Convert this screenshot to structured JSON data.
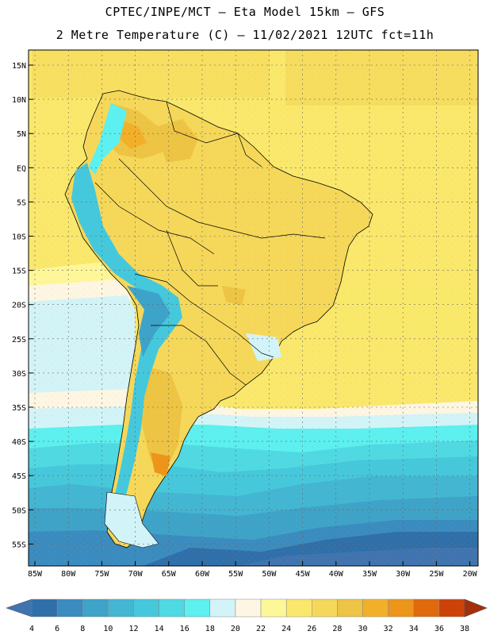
{
  "header": {
    "line1": "CPTEC/INPE/MCT –  Eta Model 15km – GFS",
    "line2": "2 Metre Temperature (C) – 11/02/2021 12UTC fct=11h"
  },
  "map": {
    "region": "South America",
    "lat_labels": [
      "15N",
      "10N",
      "5N",
      "EQ",
      "5S",
      "10S",
      "15S",
      "20S",
      "25S",
      "30S",
      "35S",
      "40S",
      "45S",
      "50S",
      "55S"
    ],
    "lon_labels": [
      "85W",
      "80W",
      "75W",
      "70W",
      "65W",
      "60W",
      "55W",
      "50W",
      "45W",
      "40W",
      "35W",
      "30W",
      "25W",
      "20W"
    ]
  },
  "colorbar": {
    "labels": [
      "4",
      "6",
      "8",
      "10",
      "12",
      "14",
      "16",
      "18",
      "20",
      "22",
      "24",
      "26",
      "28",
      "30",
      "32",
      "34",
      "36",
      "38"
    ],
    "colors": [
      "#3f74b0",
      "#2f6faa",
      "#3a8cc0",
      "#3ea3c8",
      "#42b6d3",
      "#45c8dc",
      "#4fd9e3",
      "#5cf0f0",
      "#d2f4f8",
      "#fdf6e3",
      "#fef79a",
      "#f9e86c",
      "#f5d85a",
      "#edc443",
      "#f2b02a",
      "#ec951a",
      "#e0690c",
      "#cc4208",
      "#a3300a"
    ]
  }
}
